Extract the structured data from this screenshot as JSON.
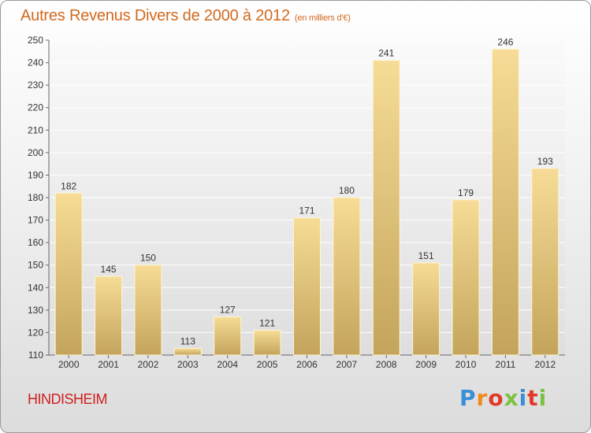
{
  "chart_data": {
    "type": "bar",
    "title": "Autres Revenus Divers de 2000 à 2012",
    "subtitle": "(en milliers d'€)",
    "categories": [
      "2000",
      "2001",
      "2002",
      "2003",
      "2004",
      "2005",
      "2006",
      "2007",
      "2008",
      "2009",
      "2010",
      "2011",
      "2012"
    ],
    "values": [
      182,
      145,
      150,
      113,
      127,
      121,
      171,
      180,
      241,
      151,
      179,
      246,
      193
    ],
    "ylim": [
      110,
      250
    ],
    "yticks": [
      110,
      120,
      130,
      140,
      150,
      160,
      170,
      180,
      190,
      200,
      210,
      220,
      230,
      240,
      250
    ],
    "grid": true,
    "bar_color_top": "#f6dc96",
    "bar_color_bottom": "#c4a45c"
  },
  "footer": {
    "city": "HINDISHEIM",
    "logo_text": "Proxiti",
    "logo_colors": [
      "#3a8fd8",
      "#f08a1c",
      "#e23a2a",
      "#7cc242",
      "#3a8fd8",
      "#e23a2a",
      "#7cc242"
    ]
  },
  "colors": {
    "title": "#d2691e",
    "city": "#d02020"
  }
}
